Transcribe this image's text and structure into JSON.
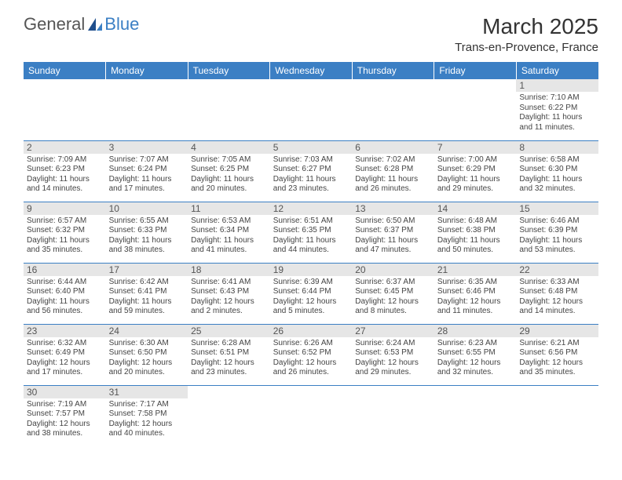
{
  "brand": {
    "part1": "General",
    "part2": "Blue"
  },
  "title": "March 2025",
  "location": "Trans-en-Provence, France",
  "header_bg": "#3b7fc4",
  "day_headers": [
    "Sunday",
    "Monday",
    "Tuesday",
    "Wednesday",
    "Thursday",
    "Friday",
    "Saturday"
  ],
  "weeks": [
    [
      {
        "n": "",
        "sr": "",
        "ss": "",
        "dl": ""
      },
      {
        "n": "",
        "sr": "",
        "ss": "",
        "dl": ""
      },
      {
        "n": "",
        "sr": "",
        "ss": "",
        "dl": ""
      },
      {
        "n": "",
        "sr": "",
        "ss": "",
        "dl": ""
      },
      {
        "n": "",
        "sr": "",
        "ss": "",
        "dl": ""
      },
      {
        "n": "",
        "sr": "",
        "ss": "",
        "dl": ""
      },
      {
        "n": "1",
        "sr": "Sunrise: 7:10 AM",
        "ss": "Sunset: 6:22 PM",
        "dl": "Daylight: 11 hours and 11 minutes."
      }
    ],
    [
      {
        "n": "2",
        "sr": "Sunrise: 7:09 AM",
        "ss": "Sunset: 6:23 PM",
        "dl": "Daylight: 11 hours and 14 minutes."
      },
      {
        "n": "3",
        "sr": "Sunrise: 7:07 AM",
        "ss": "Sunset: 6:24 PM",
        "dl": "Daylight: 11 hours and 17 minutes."
      },
      {
        "n": "4",
        "sr": "Sunrise: 7:05 AM",
        "ss": "Sunset: 6:25 PM",
        "dl": "Daylight: 11 hours and 20 minutes."
      },
      {
        "n": "5",
        "sr": "Sunrise: 7:03 AM",
        "ss": "Sunset: 6:27 PM",
        "dl": "Daylight: 11 hours and 23 minutes."
      },
      {
        "n": "6",
        "sr": "Sunrise: 7:02 AM",
        "ss": "Sunset: 6:28 PM",
        "dl": "Daylight: 11 hours and 26 minutes."
      },
      {
        "n": "7",
        "sr": "Sunrise: 7:00 AM",
        "ss": "Sunset: 6:29 PM",
        "dl": "Daylight: 11 hours and 29 minutes."
      },
      {
        "n": "8",
        "sr": "Sunrise: 6:58 AM",
        "ss": "Sunset: 6:30 PM",
        "dl": "Daylight: 11 hours and 32 minutes."
      }
    ],
    [
      {
        "n": "9",
        "sr": "Sunrise: 6:57 AM",
        "ss": "Sunset: 6:32 PM",
        "dl": "Daylight: 11 hours and 35 minutes."
      },
      {
        "n": "10",
        "sr": "Sunrise: 6:55 AM",
        "ss": "Sunset: 6:33 PM",
        "dl": "Daylight: 11 hours and 38 minutes."
      },
      {
        "n": "11",
        "sr": "Sunrise: 6:53 AM",
        "ss": "Sunset: 6:34 PM",
        "dl": "Daylight: 11 hours and 41 minutes."
      },
      {
        "n": "12",
        "sr": "Sunrise: 6:51 AM",
        "ss": "Sunset: 6:35 PM",
        "dl": "Daylight: 11 hours and 44 minutes."
      },
      {
        "n": "13",
        "sr": "Sunrise: 6:50 AM",
        "ss": "Sunset: 6:37 PM",
        "dl": "Daylight: 11 hours and 47 minutes."
      },
      {
        "n": "14",
        "sr": "Sunrise: 6:48 AM",
        "ss": "Sunset: 6:38 PM",
        "dl": "Daylight: 11 hours and 50 minutes."
      },
      {
        "n": "15",
        "sr": "Sunrise: 6:46 AM",
        "ss": "Sunset: 6:39 PM",
        "dl": "Daylight: 11 hours and 53 minutes."
      }
    ],
    [
      {
        "n": "16",
        "sr": "Sunrise: 6:44 AM",
        "ss": "Sunset: 6:40 PM",
        "dl": "Daylight: 11 hours and 56 minutes."
      },
      {
        "n": "17",
        "sr": "Sunrise: 6:42 AM",
        "ss": "Sunset: 6:41 PM",
        "dl": "Daylight: 11 hours and 59 minutes."
      },
      {
        "n": "18",
        "sr": "Sunrise: 6:41 AM",
        "ss": "Sunset: 6:43 PM",
        "dl": "Daylight: 12 hours and 2 minutes."
      },
      {
        "n": "19",
        "sr": "Sunrise: 6:39 AM",
        "ss": "Sunset: 6:44 PM",
        "dl": "Daylight: 12 hours and 5 minutes."
      },
      {
        "n": "20",
        "sr": "Sunrise: 6:37 AM",
        "ss": "Sunset: 6:45 PM",
        "dl": "Daylight: 12 hours and 8 minutes."
      },
      {
        "n": "21",
        "sr": "Sunrise: 6:35 AM",
        "ss": "Sunset: 6:46 PM",
        "dl": "Daylight: 12 hours and 11 minutes."
      },
      {
        "n": "22",
        "sr": "Sunrise: 6:33 AM",
        "ss": "Sunset: 6:48 PM",
        "dl": "Daylight: 12 hours and 14 minutes."
      }
    ],
    [
      {
        "n": "23",
        "sr": "Sunrise: 6:32 AM",
        "ss": "Sunset: 6:49 PM",
        "dl": "Daylight: 12 hours and 17 minutes."
      },
      {
        "n": "24",
        "sr": "Sunrise: 6:30 AM",
        "ss": "Sunset: 6:50 PM",
        "dl": "Daylight: 12 hours and 20 minutes."
      },
      {
        "n": "25",
        "sr": "Sunrise: 6:28 AM",
        "ss": "Sunset: 6:51 PM",
        "dl": "Daylight: 12 hours and 23 minutes."
      },
      {
        "n": "26",
        "sr": "Sunrise: 6:26 AM",
        "ss": "Sunset: 6:52 PM",
        "dl": "Daylight: 12 hours and 26 minutes."
      },
      {
        "n": "27",
        "sr": "Sunrise: 6:24 AM",
        "ss": "Sunset: 6:53 PM",
        "dl": "Daylight: 12 hours and 29 minutes."
      },
      {
        "n": "28",
        "sr": "Sunrise: 6:23 AM",
        "ss": "Sunset: 6:55 PM",
        "dl": "Daylight: 12 hours and 32 minutes."
      },
      {
        "n": "29",
        "sr": "Sunrise: 6:21 AM",
        "ss": "Sunset: 6:56 PM",
        "dl": "Daylight: 12 hours and 35 minutes."
      }
    ],
    [
      {
        "n": "30",
        "sr": "Sunrise: 7:19 AM",
        "ss": "Sunset: 7:57 PM",
        "dl": "Daylight: 12 hours and 38 minutes."
      },
      {
        "n": "31",
        "sr": "Sunrise: 7:17 AM",
        "ss": "Sunset: 7:58 PM",
        "dl": "Daylight: 12 hours and 40 minutes."
      },
      {
        "n": "",
        "sr": "",
        "ss": "",
        "dl": ""
      },
      {
        "n": "",
        "sr": "",
        "ss": "",
        "dl": ""
      },
      {
        "n": "",
        "sr": "",
        "ss": "",
        "dl": ""
      },
      {
        "n": "",
        "sr": "",
        "ss": "",
        "dl": ""
      },
      {
        "n": "",
        "sr": "",
        "ss": "",
        "dl": ""
      }
    ]
  ]
}
